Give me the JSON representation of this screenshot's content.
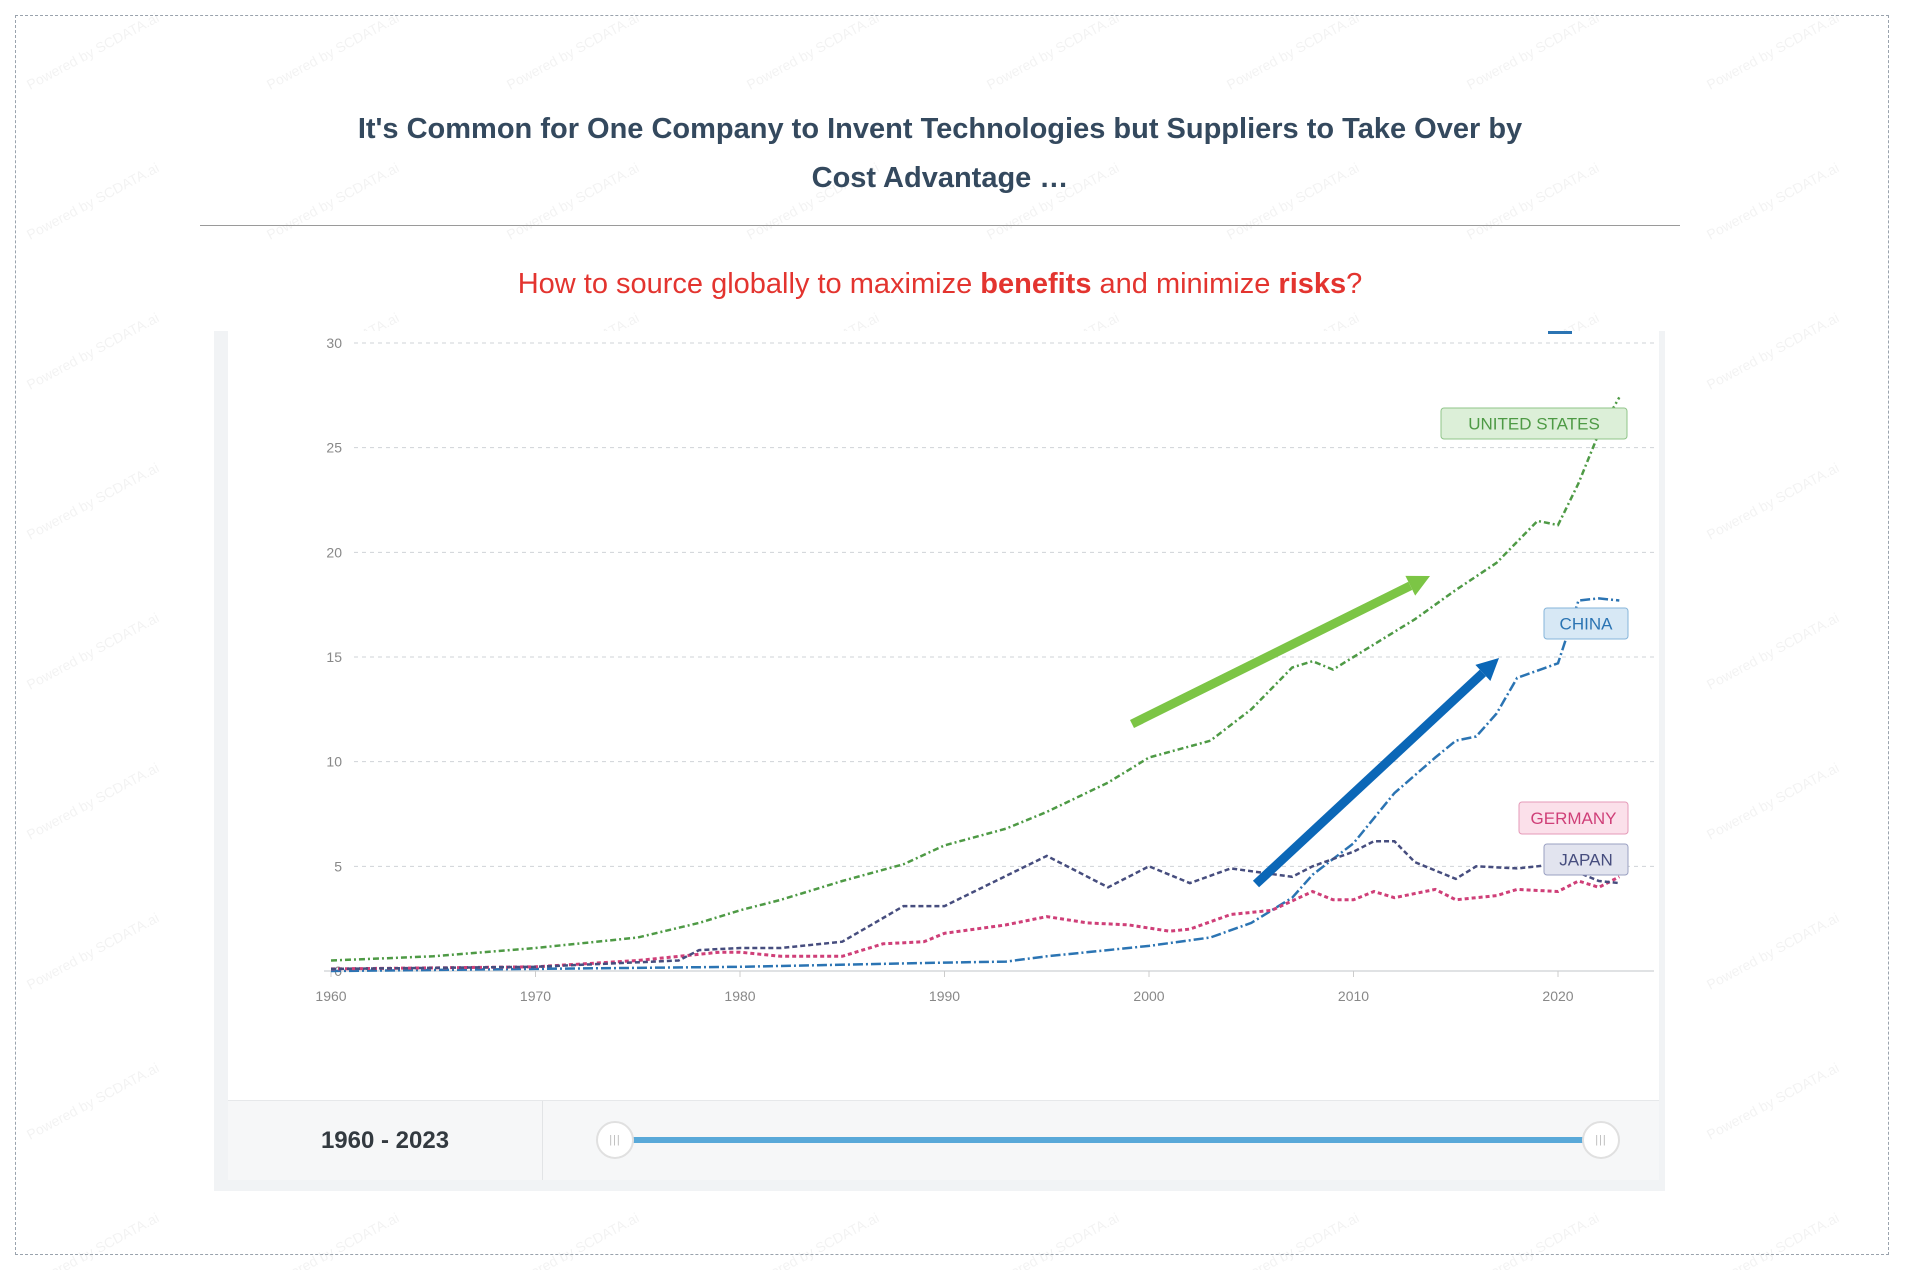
{
  "header": {
    "title_line1": "It's Common for One Company to Invent Technologies but Suppliers to Take Over by",
    "title_line2": "Cost Advantage …",
    "subtitle_pre": "How to source globally to maximize ",
    "subtitle_b1": "benefits",
    "subtitle_mid": " and minimize ",
    "subtitle_b2": "risks",
    "subtitle_post": "?"
  },
  "watermark": "Powered by SCDATA.ai",
  "slider": {
    "range_label": "1960 - 2023",
    "handle_glyph": "|||",
    "start_fraction": 0,
    "end_fraction": 1
  },
  "colors": {
    "us": "#4e9a45",
    "china": "#2b74b3",
    "japan": "#464d7e",
    "germany": "#cf3f78",
    "arrow_green": "#7cc545",
    "arrow_blue": "#0b67b7",
    "title": "#34495e",
    "subtitle": "#e3342f"
  },
  "chart_data": {
    "type": "line",
    "xlim": [
      1960,
      2023
    ],
    "ylim": [
      0,
      30
    ],
    "grid": true,
    "x_ticks": [
      "1960",
      "1970",
      "1980",
      "1990",
      "2000",
      "2010",
      "2020"
    ],
    "y_ticks": [
      "0",
      "5",
      "10",
      "15",
      "20",
      "25",
      "30"
    ],
    "annotations": [
      "green upward arrow along United States trend",
      "blue upward arrow along China trend"
    ],
    "series": [
      {
        "name": "UNITED STATES",
        "color": "#4e9a45",
        "points": [
          [
            1960,
            0.5
          ],
          [
            1965,
            0.7
          ],
          [
            1970,
            1.1
          ],
          [
            1975,
            1.6
          ],
          [
            1978,
            2.3
          ],
          [
            1980,
            2.9
          ],
          [
            1982,
            3.4
          ],
          [
            1985,
            4.3
          ],
          [
            1988,
            5.1
          ],
          [
            1990,
            6.0
          ],
          [
            1993,
            6.8
          ],
          [
            1995,
            7.6
          ],
          [
            1998,
            9.0
          ],
          [
            2000,
            10.2
          ],
          [
            2003,
            11.0
          ],
          [
            2005,
            12.5
          ],
          [
            2007,
            14.5
          ],
          [
            2008,
            14.8
          ],
          [
            2009,
            14.4
          ],
          [
            2010,
            15.0
          ],
          [
            2013,
            16.8
          ],
          [
            2015,
            18.2
          ],
          [
            2017,
            19.5
          ],
          [
            2019,
            21.5
          ],
          [
            2020,
            21.3
          ],
          [
            2021,
            23.3
          ],
          [
            2022,
            25.7
          ],
          [
            2023,
            27.4
          ]
        ]
      },
      {
        "name": "CHINA",
        "color": "#2b74b3",
        "points": [
          [
            1960,
            0.0
          ],
          [
            1970,
            0.1
          ],
          [
            1980,
            0.2
          ],
          [
            1990,
            0.4
          ],
          [
            1993,
            0.45
          ],
          [
            1995,
            0.7
          ],
          [
            2000,
            1.2
          ],
          [
            2003,
            1.6
          ],
          [
            2005,
            2.3
          ],
          [
            2007,
            3.5
          ],
          [
            2008,
            4.6
          ],
          [
            2010,
            6.1
          ],
          [
            2012,
            8.5
          ],
          [
            2014,
            10.2
          ],
          [
            2015,
            11.0
          ],
          [
            2016,
            11.2
          ],
          [
            2017,
            12.3
          ],
          [
            2018,
            14.0
          ],
          [
            2020,
            14.7
          ],
          [
            2021,
            17.7
          ],
          [
            2022,
            17.8
          ],
          [
            2023,
            17.7
          ]
        ]
      },
      {
        "name": "GERMANY",
        "color": "#cf3f78",
        "points": [
          [
            1960,
            0.1
          ],
          [
            1970,
            0.2
          ],
          [
            1975,
            0.5
          ],
          [
            1979,
            0.9
          ],
          [
            1980,
            0.9
          ],
          [
            1982,
            0.7
          ],
          [
            1985,
            0.7
          ],
          [
            1987,
            1.3
          ],
          [
            1989,
            1.4
          ],
          [
            1990,
            1.8
          ],
          [
            1993,
            2.2
          ],
          [
            1995,
            2.6
          ],
          [
            1997,
            2.3
          ],
          [
            1999,
            2.2
          ],
          [
            2001,
            1.9
          ],
          [
            2002,
            2.0
          ],
          [
            2004,
            2.7
          ],
          [
            2006,
            2.9
          ],
          [
            2008,
            3.8
          ],
          [
            2009,
            3.4
          ],
          [
            2010,
            3.4
          ],
          [
            2011,
            3.8
          ],
          [
            2012,
            3.5
          ],
          [
            2014,
            3.9
          ],
          [
            2015,
            3.4
          ],
          [
            2017,
            3.6
          ],
          [
            2018,
            3.9
          ],
          [
            2020,
            3.8
          ],
          [
            2021,
            4.3
          ],
          [
            2022,
            4.0
          ],
          [
            2023,
            4.5
          ]
        ]
      },
      {
        "name": "JAPAN",
        "color": "#464d7e",
        "points": [
          [
            1960,
            0.1
          ],
          [
            1970,
            0.2
          ],
          [
            1977,
            0.5
          ],
          [
            1978,
            1.0
          ],
          [
            1980,
            1.1
          ],
          [
            1982,
            1.1
          ],
          [
            1985,
            1.4
          ],
          [
            1988,
            3.1
          ],
          [
            1990,
            3.1
          ],
          [
            1995,
            5.5
          ],
          [
            1998,
            4.0
          ],
          [
            2000,
            5.0
          ],
          [
            2002,
            4.2
          ],
          [
            2004,
            4.9
          ],
          [
            2007,
            4.5
          ],
          [
            2008,
            5.0
          ],
          [
            2010,
            5.7
          ],
          [
            2011,
            6.2
          ],
          [
            2012,
            6.2
          ],
          [
            2013,
            5.2
          ],
          [
            2015,
            4.4
          ],
          [
            2016,
            5.0
          ],
          [
            2018,
            4.9
          ],
          [
            2020,
            5.1
          ],
          [
            2022,
            4.3
          ],
          [
            2023,
            4.2
          ]
        ]
      }
    ]
  }
}
